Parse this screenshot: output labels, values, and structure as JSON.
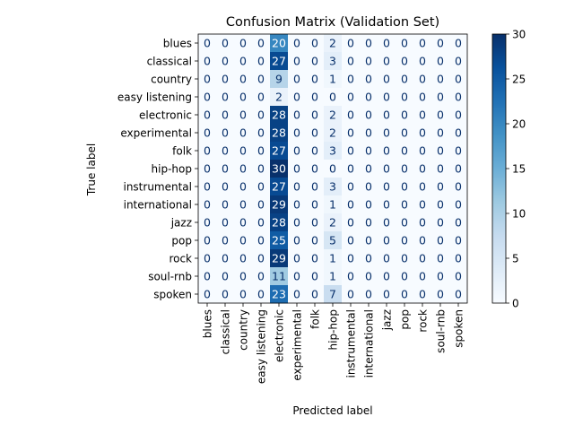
{
  "chart_data": {
    "type": "heatmap",
    "title": "Confusion Matrix (Validation Set)",
    "xlabel": "Predicted label",
    "ylabel": "True label",
    "labels": [
      "blues",
      "classical",
      "country",
      "easy listening",
      "electronic",
      "experimental",
      "folk",
      "hip-hop",
      "instrumental",
      "international",
      "jazz",
      "pop",
      "rock",
      "soul-rnb",
      "spoken"
    ],
    "matrix": [
      [
        0,
        0,
        0,
        0,
        20,
        0,
        0,
        2,
        0,
        0,
        0,
        0,
        0,
        0,
        0
      ],
      [
        0,
        0,
        0,
        0,
        27,
        0,
        0,
        3,
        0,
        0,
        0,
        0,
        0,
        0,
        0
      ],
      [
        0,
        0,
        0,
        0,
        9,
        0,
        0,
        1,
        0,
        0,
        0,
        0,
        0,
        0,
        0
      ],
      [
        0,
        0,
        0,
        0,
        2,
        0,
        0,
        0,
        0,
        0,
        0,
        0,
        0,
        0,
        0
      ],
      [
        0,
        0,
        0,
        0,
        28,
        0,
        0,
        2,
        0,
        0,
        0,
        0,
        0,
        0,
        0
      ],
      [
        0,
        0,
        0,
        0,
        28,
        0,
        0,
        2,
        0,
        0,
        0,
        0,
        0,
        0,
        0
      ],
      [
        0,
        0,
        0,
        0,
        27,
        0,
        0,
        3,
        0,
        0,
        0,
        0,
        0,
        0,
        0
      ],
      [
        0,
        0,
        0,
        0,
        30,
        0,
        0,
        0,
        0,
        0,
        0,
        0,
        0,
        0,
        0
      ],
      [
        0,
        0,
        0,
        0,
        27,
        0,
        0,
        3,
        0,
        0,
        0,
        0,
        0,
        0,
        0
      ],
      [
        0,
        0,
        0,
        0,
        29,
        0,
        0,
        1,
        0,
        0,
        0,
        0,
        0,
        0,
        0
      ],
      [
        0,
        0,
        0,
        0,
        28,
        0,
        0,
        2,
        0,
        0,
        0,
        0,
        0,
        0,
        0
      ],
      [
        0,
        0,
        0,
        0,
        25,
        0,
        0,
        5,
        0,
        0,
        0,
        0,
        0,
        0,
        0
      ],
      [
        0,
        0,
        0,
        0,
        29,
        0,
        0,
        1,
        0,
        0,
        0,
        0,
        0,
        0,
        0
      ],
      [
        0,
        0,
        0,
        0,
        11,
        0,
        0,
        1,
        0,
        0,
        0,
        0,
        0,
        0,
        0
      ],
      [
        0,
        0,
        0,
        0,
        23,
        0,
        0,
        7,
        0,
        0,
        0,
        0,
        0,
        0,
        0
      ]
    ],
    "colormap": "Blues",
    "colorbar": {
      "min": 0,
      "max": 30,
      "ticks": [
        0,
        5,
        10,
        15,
        20,
        25,
        30
      ]
    },
    "grid": false
  }
}
